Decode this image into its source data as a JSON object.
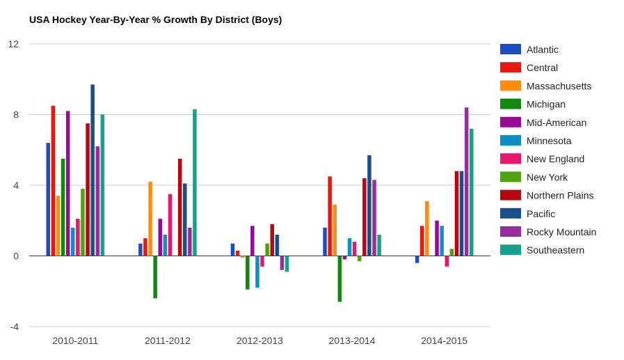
{
  "chart_data": {
    "type": "bar",
    "title": "USA Hockey Year-By-Year % Growth By District (Boys)",
    "xlabel": "",
    "ylabel": "",
    "ylim": [
      -4,
      12
    ],
    "yticks": [
      -4,
      0,
      4,
      8,
      12
    ],
    "grid": true,
    "legend_position": "right",
    "categories": [
      "2010-2011",
      "2011-2012",
      "2012-2013",
      "2013-2014",
      "2014-2015"
    ],
    "series": [
      {
        "name": "Atlantic",
        "color": "#1a4fc4",
        "values": [
          6.4,
          0.7,
          0.7,
          1.6,
          -0.4
        ]
      },
      {
        "name": "Central",
        "color": "#e8170f",
        "values": [
          8.5,
          1.0,
          0.3,
          4.5,
          1.7
        ]
      },
      {
        "name": "Massachusetts",
        "color": "#ff8c0a",
        "values": [
          3.4,
          4.2,
          -0.1,
          2.9,
          3.1
        ]
      },
      {
        "name": "Michigan",
        "color": "#0f8a0f",
        "values": [
          5.5,
          -2.4,
          -1.9,
          -2.6,
          0.0
        ]
      },
      {
        "name": "Mid-American",
        "color": "#960b96",
        "values": [
          8.2,
          2.1,
          1.7,
          -0.2,
          2.0
        ]
      },
      {
        "name": "Minnesota",
        "color": "#0f8ec6",
        "values": [
          1.6,
          1.2,
          -1.8,
          1.0,
          1.7
        ]
      },
      {
        "name": "New England",
        "color": "#e8176e",
        "values": [
          2.1,
          3.5,
          -0.6,
          0.8,
          -0.6
        ]
      },
      {
        "name": "New York",
        "color": "#4fa30f",
        "values": [
          3.8,
          0.0,
          0.7,
          -0.3,
          0.4
        ]
      },
      {
        "name": "Northern Plains",
        "color": "#b5090f",
        "values": [
          7.5,
          5.5,
          1.8,
          4.4,
          4.8
        ]
      },
      {
        "name": "Pacific",
        "color": "#174f8c",
        "values": [
          9.7,
          4.1,
          1.2,
          5.7,
          4.8
        ]
      },
      {
        "name": "Rocky Mountain",
        "color": "#992d9e",
        "values": [
          6.2,
          1.6,
          -0.8,
          4.3,
          8.4
        ]
      },
      {
        "name": "Southeastern",
        "color": "#12a38c",
        "values": [
          8.0,
          8.3,
          -0.9,
          1.2,
          7.2
        ]
      }
    ]
  }
}
